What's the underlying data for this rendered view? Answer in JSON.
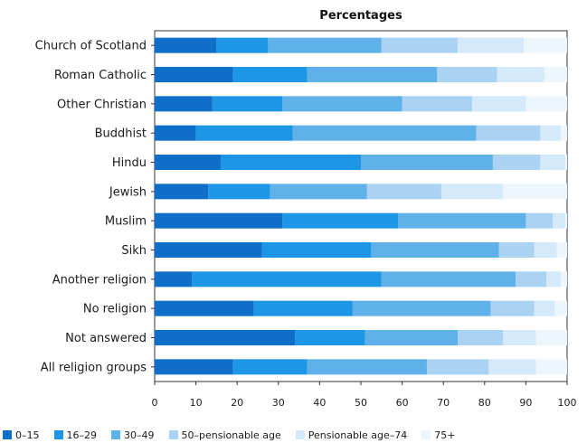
{
  "chart_data": {
    "type": "bar",
    "orientation": "horizontal",
    "stacked": true,
    "title": "Percentages",
    "categories": [
      "Church of Scotland",
      "Roman Catholic",
      "Other Christian",
      "Buddhist",
      "Hindu",
      "Jewish",
      "Muslim",
      "Sikh",
      "Another religion",
      "No religion",
      "Not answered",
      "All religion groups"
    ],
    "series": [
      {
        "name": "0–15",
        "color": "#0f6ec8",
        "values": [
          15,
          19,
          14,
          10,
          16,
          13,
          31,
          26,
          9,
          24,
          34,
          19
        ]
      },
      {
        "name": "16–29",
        "color": "#1e96e6",
        "values": [
          12.5,
          18,
          17,
          23.5,
          34,
          15,
          28,
          26.5,
          46,
          24,
          17,
          18
        ]
      },
      {
        "name": "30–49",
        "color": "#5fb1ea",
        "values": [
          27.5,
          31.5,
          29,
          44.5,
          32,
          23.5,
          31,
          31,
          32.5,
          33.5,
          22.5,
          29
        ]
      },
      {
        "name": "50–pensionable age",
        "color": "#a9d2f3",
        "values": [
          18.5,
          14.5,
          17,
          15.5,
          11.5,
          18,
          6.5,
          8.5,
          7.5,
          10.5,
          11,
          15
        ]
      },
      {
        "name": "Pensionable age–74",
        "color": "#d4e9f9",
        "values": [
          16,
          11.5,
          13,
          5,
          6,
          15,
          3,
          5.5,
          3.5,
          5,
          8,
          11.5
        ]
      },
      {
        "name": "75+",
        "color": "#eef6fd",
        "values": [
          10.5,
          5.5,
          10,
          1.5,
          0.5,
          15.5,
          0.5,
          2.5,
          1.5,
          3,
          7.5,
          7.5
        ]
      }
    ],
    "x_ticks": [
      "0",
      "10",
      "20",
      "30",
      "40",
      "50",
      "60",
      "70",
      "80",
      "90",
      "100"
    ],
    "xlim": [
      0,
      100
    ],
    "grid": false,
    "legend_position": "bottom"
  }
}
